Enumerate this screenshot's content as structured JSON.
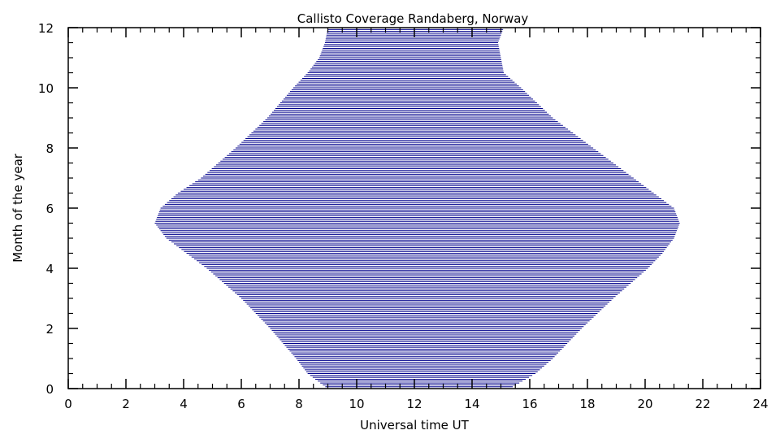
{
  "chart_data": {
    "type": "area",
    "title": "Callisto Coverage Randaberg, Norway",
    "xlabel": "Universal time UT",
    "ylabel": "Month of the year",
    "xlim": [
      0,
      24
    ],
    "ylim": [
      0,
      12
    ],
    "x_ticks": [
      "0",
      "2",
      "4",
      "6",
      "8",
      "10",
      "12",
      "14",
      "16",
      "18",
      "20",
      "22",
      "24"
    ],
    "y_ticks": [
      "0",
      "2",
      "4",
      "6",
      "8",
      "10",
      "12"
    ],
    "grid": false,
    "fill_color": "#00008b",
    "fill_style": "horizontal hatch lines",
    "coverage": [
      {
        "month": 0.0,
        "start": 9.0,
        "end": 15.3
      },
      {
        "month": 0.5,
        "start": 8.3,
        "end": 16.2
      },
      {
        "month": 1.0,
        "start": 7.9,
        "end": 16.8
      },
      {
        "month": 2.0,
        "start": 7.0,
        "end": 17.8
      },
      {
        "month": 3.0,
        "start": 6.0,
        "end": 18.9
      },
      {
        "month": 4.0,
        "start": 4.8,
        "end": 20.1
      },
      {
        "month": 4.5,
        "start": 4.1,
        "end": 20.6
      },
      {
        "month": 5.0,
        "start": 3.4,
        "end": 21.0
      },
      {
        "month": 5.5,
        "start": 3.0,
        "end": 21.2
      },
      {
        "month": 6.0,
        "start": 3.2,
        "end": 21.0
      },
      {
        "month": 6.5,
        "start": 3.8,
        "end": 20.3
      },
      {
        "month": 7.0,
        "start": 4.6,
        "end": 19.6
      },
      {
        "month": 8.0,
        "start": 5.8,
        "end": 18.2
      },
      {
        "month": 9.0,
        "start": 6.9,
        "end": 16.8
      },
      {
        "month": 10.0,
        "start": 7.8,
        "end": 15.7
      },
      {
        "month": 10.5,
        "start": 8.3,
        "end": 15.1
      },
      {
        "month": 11.0,
        "start": 8.7,
        "end": 15.0
      },
      {
        "month": 11.5,
        "start": 8.9,
        "end": 14.9
      },
      {
        "month": 12.0,
        "start": 9.0,
        "end": 15.1
      }
    ]
  }
}
